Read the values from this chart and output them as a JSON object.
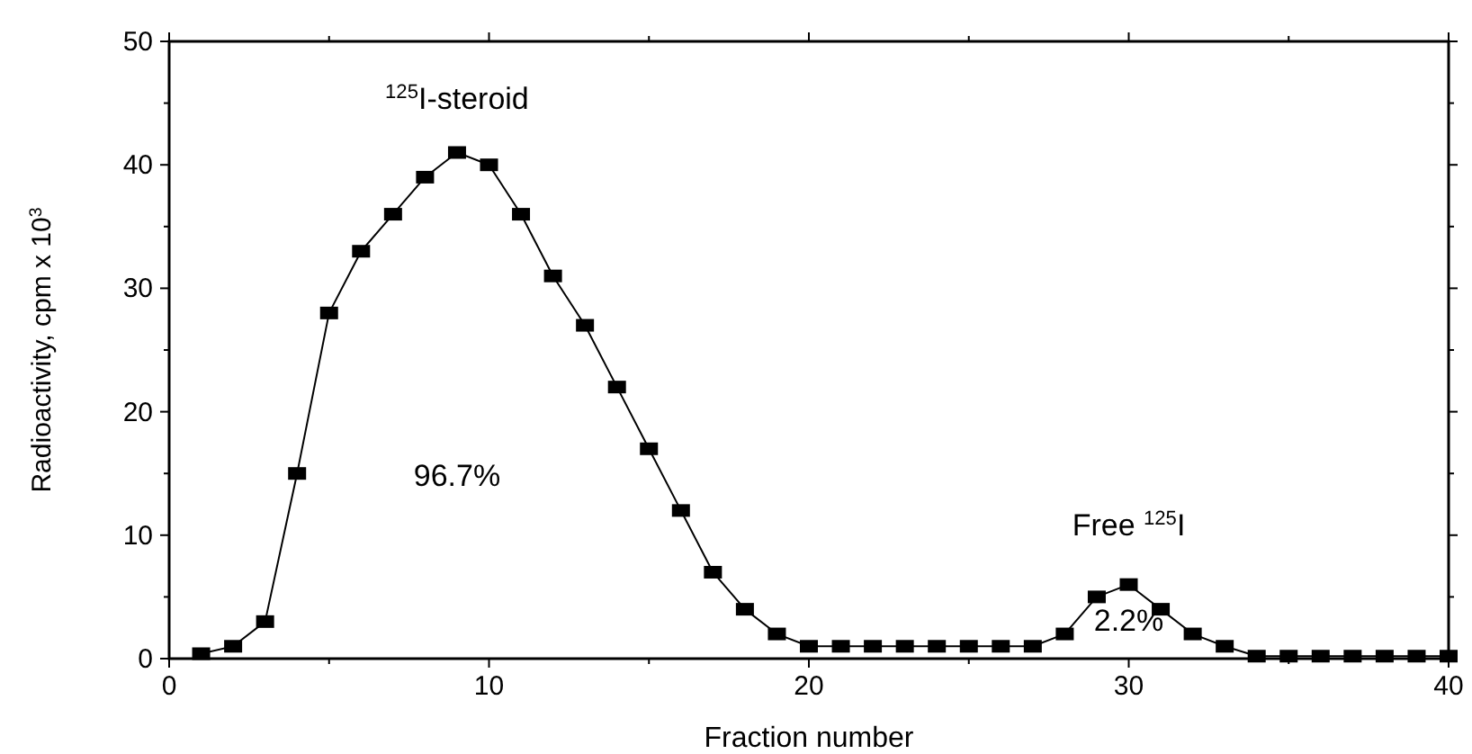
{
  "chart_data": {
    "type": "line",
    "xlabel": "Fraction number",
    "ylabel": "Radioactivity, cpm x 10$^{3}$",
    "x": [
      1,
      2,
      3,
      4,
      5,
      6,
      7,
      8,
      9,
      10,
      11,
      12,
      13,
      14,
      15,
      16,
      17,
      18,
      19,
      20,
      21,
      22,
      23,
      24,
      25,
      26,
      27,
      28,
      29,
      30,
      31,
      32,
      33,
      34,
      35,
      36,
      37,
      38,
      39,
      40
    ],
    "series": [
      {
        "color": "#000000",
        "values": [
          0.4,
          1,
          3,
          15,
          28,
          33,
          36,
          39,
          41,
          40,
          36,
          31,
          27,
          22,
          17,
          12,
          7,
          4,
          2,
          1,
          1,
          1,
          1,
          1,
          1,
          1,
          1,
          2,
          5,
          6,
          4,
          2,
          1,
          0.2,
          0.2,
          0.2,
          0.2,
          0.2,
          0.2,
          0.2
        ]
      }
    ],
    "xlim": [
      0,
      40
    ],
    "ylim": [
      0,
      50
    ],
    "xticks": [
      0,
      {
        "value": 5,
        "label": null
      },
      10,
      {
        "value": 15,
        "label": null
      },
      20,
      {
        "value": 25,
        "label": null
      },
      30,
      {
        "value": 35,
        "label": null
      },
      40
    ],
    "yticks": [
      0,
      {
        "value": 5,
        "label": null
      },
      10,
      {
        "value": 15,
        "label": null
      },
      20,
      {
        "value": 25,
        "label": null
      },
      30,
      {
        "value": 35,
        "label": null
      },
      40,
      {
        "value": 45,
        "label": null
      },
      50
    ],
    "marker": "square",
    "line_style": "solid",
    "annotations": [
      "$^{125}$I-steroid",
      "96.7%",
      "Free $^{125}$I",
      "2.2%"
    ]
  }
}
